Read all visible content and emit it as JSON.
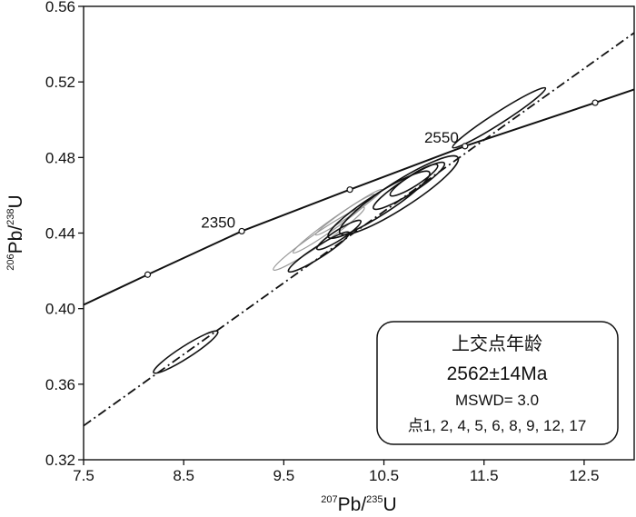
{
  "chart_data": {
    "type": "scatter",
    "subtype": "concordia-diagram",
    "xlabel": {
      "sup": "207",
      "base": "Pb/",
      "sup2": "235",
      "tail": "U"
    },
    "ylabel": {
      "sup": "206",
      "base": "Pb/",
      "sup2": "238",
      "tail": "U"
    },
    "xlim": [
      7.5,
      13.0
    ],
    "ylim": [
      0.32,
      0.56
    ],
    "xticks": [
      "7.5",
      "8.5",
      "9.5",
      "10.5",
      "11.5",
      "12.5"
    ],
    "yticks": [
      "0.32",
      "0.36",
      "0.40",
      "0.44",
      "0.48",
      "0.52",
      "0.56"
    ],
    "concordia_points": [
      {
        "x": 8.14,
        "y": 0.418,
        "label": ""
      },
      {
        "x": 9.08,
        "y": 0.441,
        "label": "2350"
      },
      {
        "x": 10.16,
        "y": 0.463,
        "label": ""
      },
      {
        "x": 11.31,
        "y": 0.486,
        "label": "2550"
      },
      {
        "x": 12.61,
        "y": 0.509,
        "label": ""
      }
    ],
    "concordia_curve": [
      [
        7.5,
        0.402
      ],
      [
        8.14,
        0.418
      ],
      [
        9.08,
        0.441
      ],
      [
        10.16,
        0.463
      ],
      [
        11.31,
        0.486
      ],
      [
        12.61,
        0.509
      ],
      [
        13.0,
        0.516
      ]
    ],
    "discordia_line": {
      "x": [
        7.5,
        13.0
      ],
      "y": [
        0.338,
        0.546
      ]
    },
    "ellipses_black": [
      {
        "cx": 8.52,
        "cy": 0.377,
        "rx": 0.38,
        "ry": 0.0032,
        "angle": -0.57
      },
      {
        "cx": 9.85,
        "cy": 0.43,
        "rx": 0.36,
        "ry": 0.003,
        "angle": -0.57
      },
      {
        "cx": 10.05,
        "cy": 0.439,
        "rx": 0.26,
        "ry": 0.0026,
        "angle": -0.57
      },
      {
        "cx": 10.45,
        "cy": 0.455,
        "rx": 0.6,
        "ry": 0.0055,
        "angle": -0.57
      },
      {
        "cx": 10.65,
        "cy": 0.46,
        "rx": 0.7,
        "ry": 0.007,
        "angle": -0.57
      },
      {
        "cx": 10.75,
        "cy": 0.465,
        "rx": 0.42,
        "ry": 0.004,
        "angle": -0.57
      },
      {
        "cx": 10.8,
        "cy": 0.468,
        "rx": 0.28,
        "ry": 0.003,
        "angle": -0.57
      },
      {
        "cx": 11.65,
        "cy": 0.501,
        "rx": 0.55,
        "ry": 0.003,
        "angle": -0.57
      }
    ],
    "ellipses_gray": [
      {
        "cx": 9.85,
        "cy": 0.437,
        "rx": 0.55,
        "ry": 0.0032,
        "angle": -0.6
      },
      {
        "cx": 10.0,
        "cy": 0.445,
        "rx": 0.5,
        "ry": 0.0025,
        "angle": -0.62
      },
      {
        "cx": 10.15,
        "cy": 0.451,
        "rx": 0.4,
        "ry": 0.002,
        "angle": -0.6
      }
    ]
  },
  "legend": {
    "title": "上交点年龄",
    "age": "2562±14Ma",
    "mswd": "MSWD= 3.0",
    "points": "点1, 2, 4, 5, 6, 8, 9, 12, 17"
  }
}
